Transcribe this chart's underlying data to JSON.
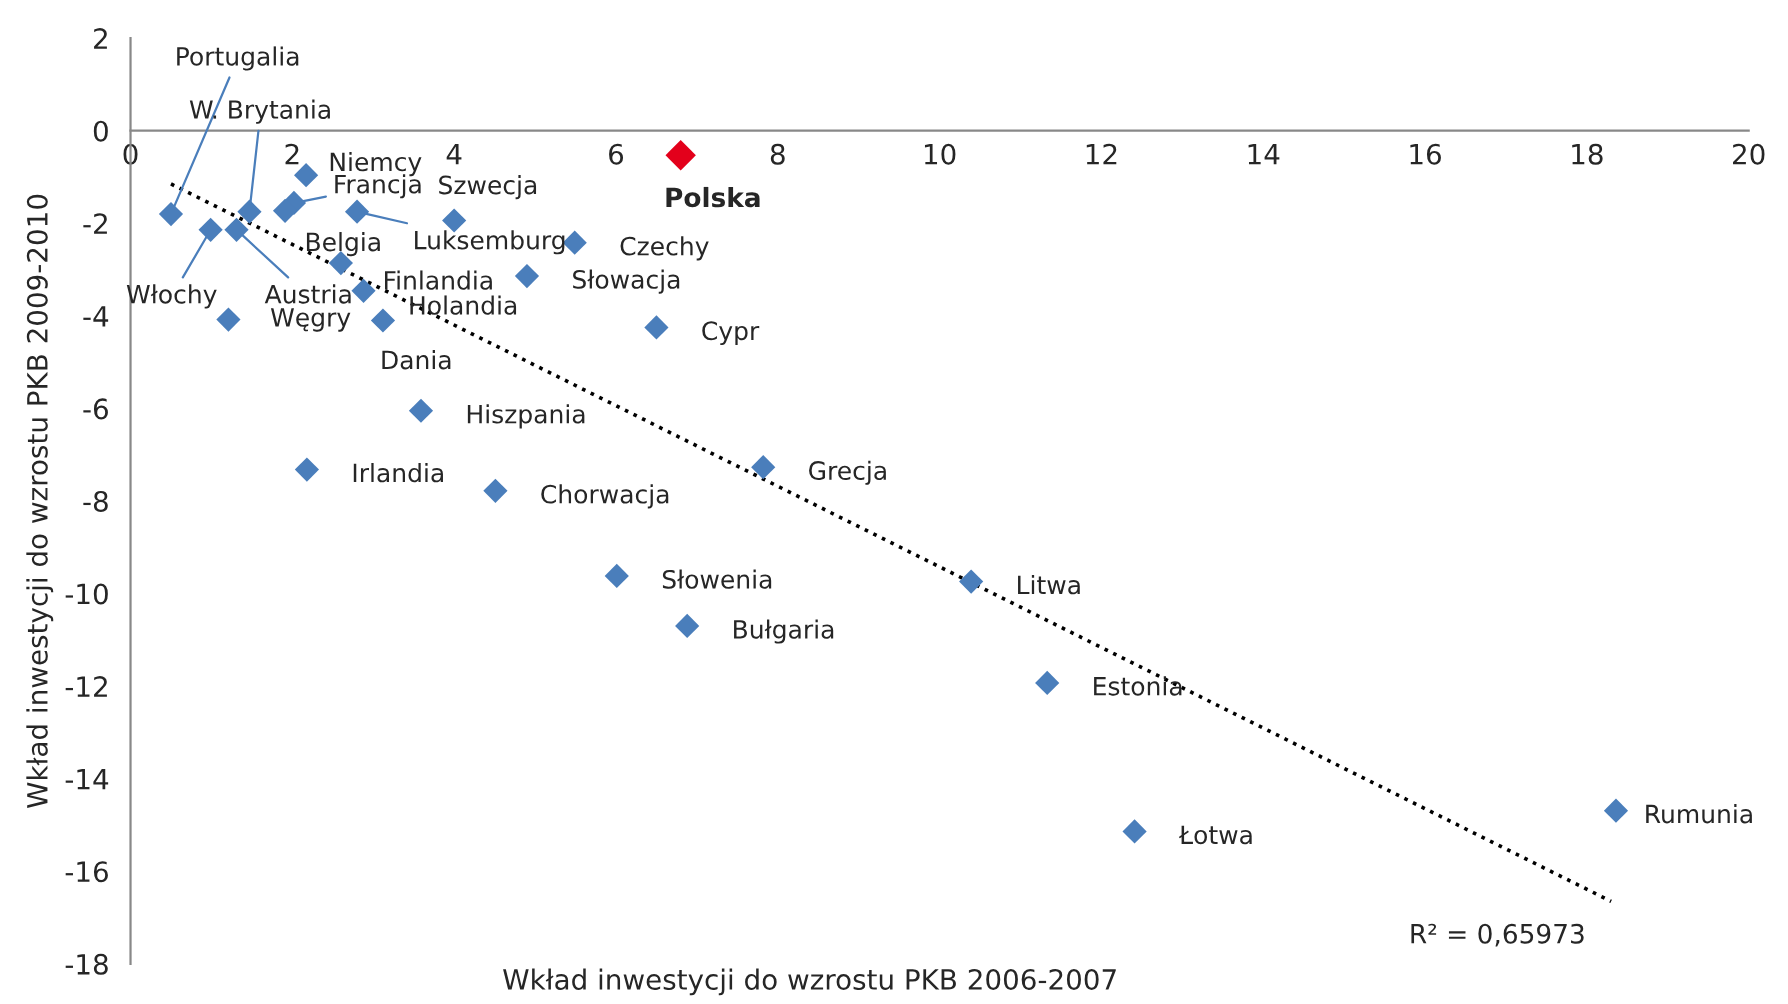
{
  "chart_data": {
    "type": "scatter",
    "xlabel": "Wkład inwestycji do wzrostu PKB 2006-2007",
    "ylabel": "Wkład inwestycji do wzrostu PKB 2009-2010",
    "xlim": [
      0,
      20
    ],
    "ylim": [
      -18,
      2
    ],
    "xticks": [
      0,
      2,
      4,
      6,
      8,
      10,
      12,
      14,
      16,
      18,
      20
    ],
    "yticks": [
      -18,
      -16,
      -14,
      -12,
      -10,
      -8,
      -6,
      -4,
      -2,
      0,
      2
    ],
    "grid": false,
    "legend": false,
    "series": [
      {
        "marker": "diamond",
        "color": "#4a7ebb",
        "x": [
          0.5,
          1.47,
          2.17,
          2.02,
          1.91,
          2.8,
          0.99,
          1.31,
          2.6,
          2.88,
          3.12,
          1.21,
          4.0,
          5.49,
          4.9,
          6.5,
          3.59,
          2.18,
          4.51,
          7.82,
          6.01,
          6.88,
          10.39,
          11.33,
          12.41,
          18.36
        ],
        "values": [
          -1.8,
          -1.75,
          -0.96,
          -1.56,
          -1.73,
          -1.75,
          -2.14,
          -2.14,
          -2.86,
          -3.46,
          -4.1,
          -4.08,
          -1.94,
          -2.42,
          -3.14,
          -4.25,
          -6.05,
          -7.32,
          -7.78,
          -7.27,
          -9.62,
          -10.7,
          -9.74,
          -11.93,
          -15.14,
          -14.69
        ]
      },
      {
        "type": "scatter",
        "marker": "diamond",
        "name": "Polska",
        "color": "#e3001b",
        "x": [
          6.8
        ],
        "values": [
          -0.53
        ]
      },
      {
        "type": "line",
        "color": "#000000",
        "line_style": "dotted",
        "x": [
          0.5,
          18.3
        ],
        "values": [
          -1.15,
          -16.65
        ]
      }
    ],
    "annotations": [
      {
        "text": "Portugalia",
        "x": 0.5,
        "y": -1.8
      },
      {
        "text": "W. Brytania",
        "x": 1.47,
        "y": -1.75
      },
      {
        "text": "Niemcy",
        "x": 2.17,
        "y": -0.96
      },
      {
        "text": "Francja",
        "x": 2.02,
        "y": -1.56
      },
      {
        "text": "Belgia",
        "x": 1.91,
        "y": -1.73
      },
      {
        "text": "Luksemburg",
        "x": 2.8,
        "y": -1.75
      },
      {
        "text": "Włochy",
        "x": 0.99,
        "y": -2.14
      },
      {
        "text": "Austria",
        "x": 1.31,
        "y": -2.14
      },
      {
        "text": "Finlandia",
        "x": 2.6,
        "y": -2.86
      },
      {
        "text": "Holandia",
        "x": 2.88,
        "y": -3.46
      },
      {
        "text": "Dania",
        "x": 3.12,
        "y": -4.1
      },
      {
        "text": "Węgry",
        "x": 1.21,
        "y": -4.08
      },
      {
        "text": "Szwecja",
        "x": 4.0,
        "y": -1.94
      },
      {
        "text": "Czechy",
        "x": 5.49,
        "y": -2.42
      },
      {
        "text": "Słowacja",
        "x": 4.9,
        "y": -3.14
      },
      {
        "text": "Cypr",
        "x": 6.5,
        "y": -4.25
      },
      {
        "text": "Hiszpania",
        "x": 3.59,
        "y": -6.05
      },
      {
        "text": "Irlandia",
        "x": 2.18,
        "y": -7.32
      },
      {
        "text": "Chorwacja",
        "x": 4.51,
        "y": -7.78
      },
      {
        "text": "Grecja",
        "x": 7.82,
        "y": -7.27
      },
      {
        "text": "Słowenia",
        "x": 6.01,
        "y": -9.62
      },
      {
        "text": "Bułgaria",
        "x": 6.88,
        "y": -10.7
      },
      {
        "text": "Litwa",
        "x": 10.39,
        "y": -9.74
      },
      {
        "text": "Estonia",
        "x": 11.33,
        "y": -11.93
      },
      {
        "text": "Łotwa",
        "x": 12.41,
        "y": -15.14
      },
      {
        "text": "Rumunia",
        "x": 18.36,
        "y": -14.69
      },
      "R² = 0,65973"
    ]
  }
}
